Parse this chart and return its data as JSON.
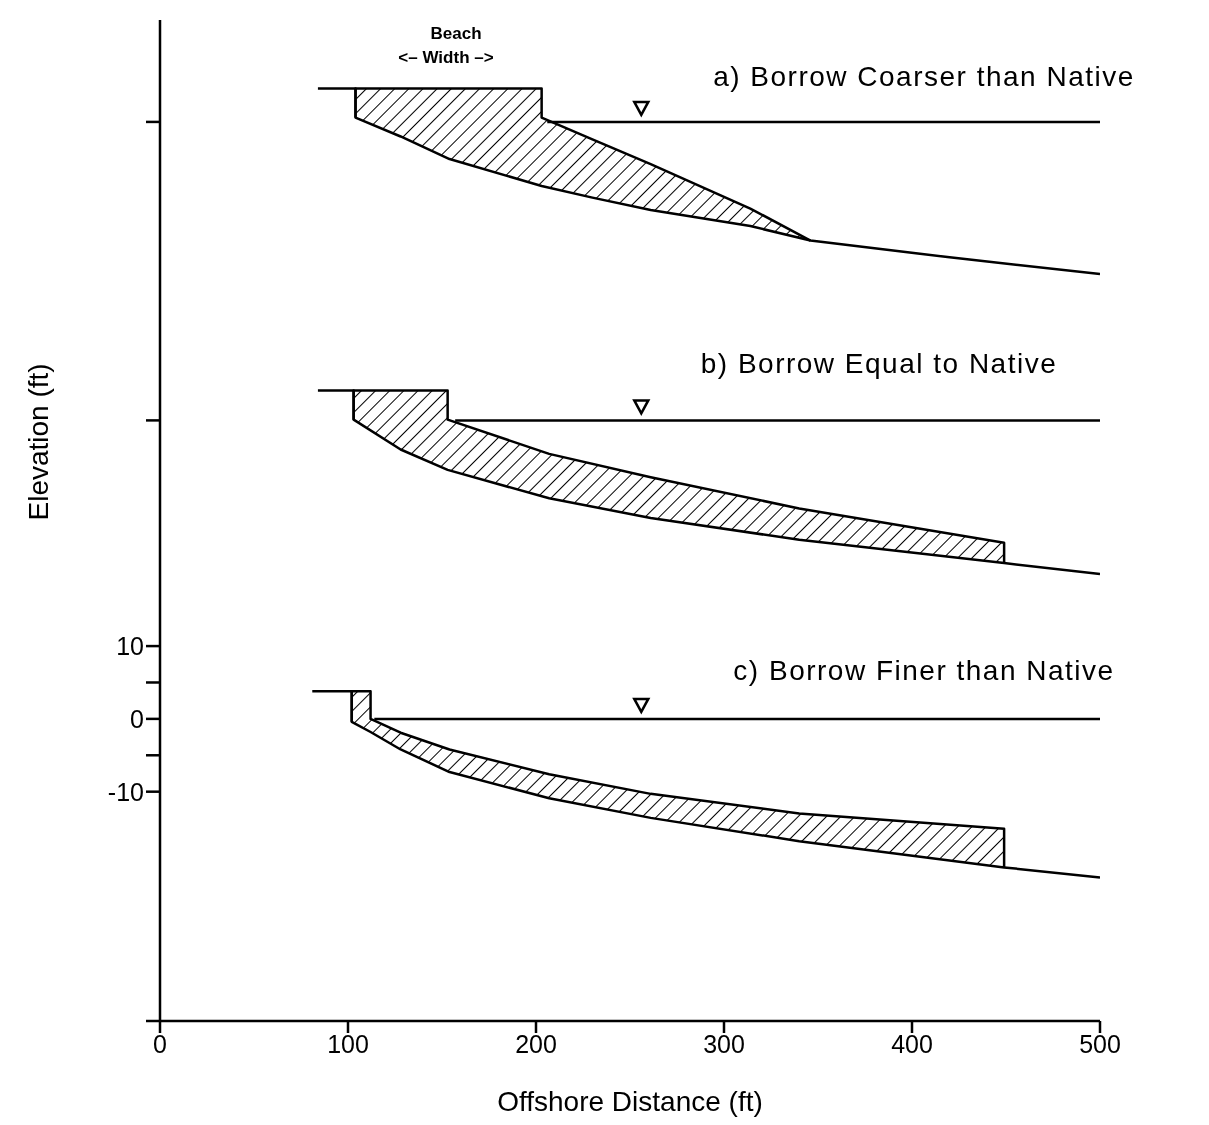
{
  "chart_data": {
    "type": "line",
    "xlabel": "Offshore Distance (ft)",
    "ylabel": "Elevation (ft)",
    "xlim": [
      0,
      500
    ],
    "xticks": [
      0,
      100,
      200,
      300,
      400,
      500
    ],
    "ylim": [
      -41.5,
      96
    ],
    "yticks": [
      {
        "value": -41.5,
        "label": null
      },
      -10,
      {
        "value": -5,
        "label": null
      },
      0,
      {
        "value": 5,
        "label": null
      },
      10,
      {
        "value": 41,
        "label": null
      },
      {
        "value": 82,
        "label": null
      }
    ],
    "series": [
      {
        "color": "#000000",
        "x": [
          84,
          104,
          104,
          128,
          154,
          203,
          230,
          261,
          314,
          346,
          420,
          500
        ],
        "values": [
          86.6,
          86.6,
          82.6,
          80.0,
          76.9,
          73.2,
          71.6,
          69.9,
          67.7,
          65.7,
          63.4,
          61.1
        ]
      },
      {
        "color": "#000000",
        "x": [
          206,
          500
        ],
        "values": [
          82,
          82
        ]
      },
      {
        "color": "#000000",
        "x": [
          104,
          104,
          128,
          154,
          203,
          203,
          230,
          261,
          314,
          346
        ],
        "values": [
          82.6,
          86.6,
          86.6,
          86.6,
          86.6,
          82.6,
          79.6,
          76.2,
          70.1,
          65.7
        ],
        "lower": [
          82.6,
          82.6,
          80.0,
          76.9,
          73.2,
          73.2,
          71.6,
          69.9,
          67.7,
          65.7
        ],
        "upper": [
          82.6,
          86.6,
          86.6,
          86.6,
          86.6,
          82.6,
          79.6,
          76.2,
          70.1,
          65.7
        ]
      },
      {
        "color": "#000000",
        "x": [
          84,
          103,
          103,
          128,
          153,
          207,
          261,
          340,
          449,
          500
        ],
        "values": [
          45.1,
          45.1,
          41.1,
          37.0,
          34.2,
          30.3,
          27.6,
          24.6,
          21.4,
          19.9
        ]
      },
      {
        "color": "#000000",
        "x": [
          157,
          500
        ],
        "values": [
          41,
          41
        ]
      },
      {
        "color": "#000000",
        "x": [
          103,
          103,
          128,
          153,
          153,
          207,
          261,
          340,
          449,
          449
        ],
        "values": [
          41.1,
          45.1,
          45.1,
          45.1,
          41.1,
          36.4,
          33.2,
          28.9,
          24.2,
          21.4
        ],
        "lower": [
          41.1,
          41.1,
          37.0,
          34.2,
          34.2,
          30.3,
          27.6,
          24.6,
          21.4,
          21.4
        ],
        "upper": [
          41.1,
          45.1,
          45.1,
          45.1,
          41.1,
          36.4,
          33.2,
          28.9,
          24.2,
          21.4
        ]
      },
      {
        "color": "#000000",
        "x": [
          81,
          102,
          102,
          112,
          128,
          154,
          207,
          261,
          340,
          449,
          500
        ],
        "values": [
          3.8,
          3.8,
          -0.4,
          -1.8,
          -4.2,
          -7.3,
          -10.9,
          -13.6,
          -16.8,
          -20.4,
          -21.8
        ]
      },
      {
        "color": "#000000",
        "x": [
          114,
          500
        ],
        "values": [
          0,
          0
        ]
      },
      {
        "color": "#000000",
        "x": [
          102,
          102,
          112,
          112,
          128,
          154,
          207,
          261,
          340,
          449,
          449
        ],
        "values": [
          -0.4,
          3.8,
          3.8,
          0,
          -1.9,
          -4.2,
          -7.6,
          -10.3,
          -13.0,
          -15.1,
          -20.4
        ],
        "lower": [
          -0.4,
          -0.4,
          -1.8,
          -1.8,
          -4.2,
          -7.3,
          -10.9,
          -13.6,
          -16.8,
          -20.4,
          -20.4
        ],
        "upper": [
          -0.4,
          3.8,
          3.8,
          0,
          -1.9,
          -4.2,
          -7.6,
          -10.3,
          -13.0,
          -15.1,
          -20.4
        ]
      }
    ],
    "annotations": [
      "Beach",
      "<– Width –>",
      "a) Borrow Coarser than Native",
      "b) Borrow Equal to Native",
      "c) Borrow Finer than Native"
    ]
  }
}
